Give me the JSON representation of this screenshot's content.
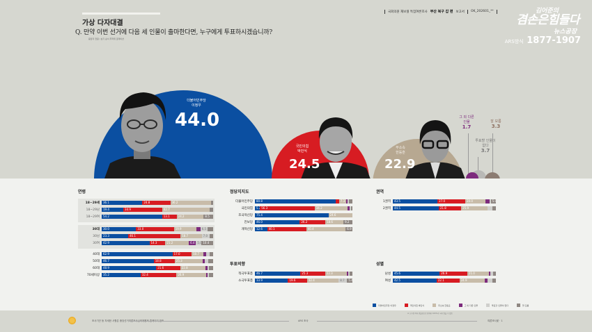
{
  "header": {
    "section_title": "가상 다자대결",
    "question": "Q. 만약 이번 선거에 다음 세 인물이 출마한다면, 누구에게 투표하시겠습니까?",
    "question_note": "응답자 전원 / 보기 순서 무작위 로테이션",
    "meta": {
      "source_prefix": "국회의원 재보궐 특집여론조사",
      "region_bold": "부산 북구 갑 편",
      "report": "보고서",
      "doc_id": "OK_202601_**"
    },
    "brand": {
      "line1": "김어준의",
      "line2": "겸손은힘들다",
      "line3": "뉴스공장",
      "line4_prefix": "ARS방식",
      "line4_number": "1877-1907"
    }
  },
  "candidates": [
    {
      "party": "더불어민주당",
      "name": "이정우",
      "value": "44.0",
      "color": "#0b4fa1"
    },
    {
      "party": "국민의힘",
      "name": "박민식",
      "value": "24.5",
      "color": "#d71c22"
    },
    {
      "party": "무소속",
      "name": "한동훈",
      "value": "22.9",
      "color": "#b7a891"
    }
  ],
  "minor_options": [
    {
      "label": "그 외 다른인물",
      "value": "1.7",
      "color": "#7d2b7d"
    },
    {
      "label": "투표할 인물이 없다",
      "value": "3.7",
      "color": "#b9b9b6"
    },
    {
      "label": "잘 모름",
      "value": "3.3",
      "color": "#8c7c72"
    }
  ],
  "chart_data": {
    "type": "bar",
    "title": "가상 다자대결 — 부산 북구 갑",
    "overall": {
      "categories": [
        "더불어민주당 이정우",
        "국민의힘 박민식",
        "무소속 한동훈",
        "그 외 다른인물",
        "투표할 인물이 없다",
        "잘 모름"
      ],
      "values": [
        44.0,
        24.5,
        22.9,
        1.7,
        3.7,
        3.3
      ]
    },
    "legend": [
      "더불어민주당 이정우",
      "국민의힘 박민식",
      "무소속 한동훈",
      "그 외 다른인물",
      "투표할 인물이 없다",
      "잘 모름"
    ],
    "breakdowns": [
      {
        "title": "연령",
        "rows": [
          {
            "label": "18~29세",
            "values": [
              36.1,
              24.8,
              36.2,
              0.0,
              0.0,
              1.8
            ],
            "style": "bold",
            "box": 1
          },
          {
            "label": "18~29남",
            "values": [
              19.4,
              34.9,
              42.7,
              0.0,
              0.0,
              3.0
            ],
            "style": "sub",
            "box": 1
          },
          {
            "label": "18~29여",
            "values": [
              54.2,
              13.1,
              24.2,
              0.0,
              0.0,
              8.5
            ],
            "style": "sub",
            "box": 1
          },
          {
            "label": "30대",
            "values": [
              30.0,
              33.0,
              19.9,
              3.2,
              6.5,
              4.6
            ],
            "style": "bold",
            "box": 2
          },
          {
            "label": "30남",
            "values": [
              23.3,
              46.1,
              18.7,
              0.0,
              7.0,
              3.0
            ],
            "style": "sub",
            "box": 2
          },
          {
            "label": "30여",
            "values": [
              42.9,
              14.3,
              21.2,
              6.4,
              5.0,
              10.4
            ],
            "style": "sub",
            "box": 2
          },
          {
            "label": "40대",
            "values": [
              62.9,
              17.0,
              10.7,
              2.5,
              2.9,
              3.0
            ],
            "style": "normal"
          },
          {
            "label": "50대",
            "values": [
              46.7,
              18.8,
              25.3,
              1.9,
              3.1,
              4.2
            ],
            "style": "normal"
          },
          {
            "label": "60대",
            "values": [
              48.9,
              21.6,
              22.8,
              1.5,
              1.2,
              4.0
            ],
            "style": "normal"
          },
          {
            "label": "70세이상",
            "values": [
              35.2,
              32.4,
              26.9,
              0.5,
              1.5,
              3.5
            ],
            "style": "normal"
          }
        ]
      },
      {
        "title": "정당지지도",
        "rows": [
          {
            "label": "더불어민주당",
            "values": [
              80.8,
              3.2,
              7.3,
              1.4,
              1.0,
              3.3
            ]
          },
          {
            "label": "국민의힘",
            "values": [
              5.2,
              56.3,
              34.2,
              1.8,
              1.0,
              1.5
            ]
          },
          {
            "label": "조국혁신당",
            "values": [
              75.4,
              0.0,
              24.6,
              0.0,
              0.0,
              0.0
            ]
          },
          {
            "label": "진보당",
            "values": [
              46.0,
              26.2,
              18.6,
              0.0,
              0.0,
              9.2
            ]
          },
          {
            "label": "개혁신당",
            "values": [
              12.6,
              40.1,
              40.4,
              0.0,
              0.0,
              6.9
            ]
          }
        ]
      },
      {
        "title": "투표의향",
        "rows": [
          {
            "label": "적극투표층",
            "values": [
              46.7,
              25.3,
              22.3,
              1.6,
              1.5,
              2.6
            ]
          },
          {
            "label": "소극투표층",
            "values": [
              33.9,
              19.6,
              32.4,
              0.0,
              8.7,
              5.4
            ]
          }
        ]
      },
      {
        "title": "권역",
        "rows": [
          {
            "label": "1권역",
            "values": [
              43.5,
              27.0,
              20.0,
              3.5,
              1.0,
              5.0
            ]
          },
          {
            "label": "2권역",
            "values": [
              44.5,
              21.8,
              25.9,
              0.0,
              4.5,
              3.3
            ]
          }
        ]
      },
      {
        "title": "성별",
        "rows": [
          {
            "label": "남성",
            "values": [
              45.6,
              26.9,
              21.0,
              1.0,
              2.5,
              3.0
            ]
          },
          {
            "label": "여성",
            "values": [
              42.5,
              22.1,
              24.9,
              2.4,
              4.9,
              3.2
            ]
          }
        ]
      }
    ]
  },
  "legend_items": [
    {
      "label": "더불어민주당 이정우",
      "color": "#0b4fa1"
    },
    {
      "label": "국민의힘 박민식",
      "color": "#d71c22"
    },
    {
      "label": "무소속 한동훈",
      "color": "#c8bca9"
    },
    {
      "label": "그 외 다른 인물",
      "color": "#7d2b7d"
    },
    {
      "label": "투표할 인물이 없다",
      "color": "#cfcfcc"
    },
    {
      "label": "잘 모름",
      "color": "#8f8782"
    }
  ],
  "legend_note": "※ 소수점 이하 반올림으로 합계가 100%가 되지 않을 수 있음",
  "footer": {
    "left_text": "조사기관 등 자세한 사항은 중앙선거여론조사심의위원회 홈페이지 참조",
    "center_text": "ARS 조사",
    "right_text": "여론조사꽃 · 1"
  }
}
